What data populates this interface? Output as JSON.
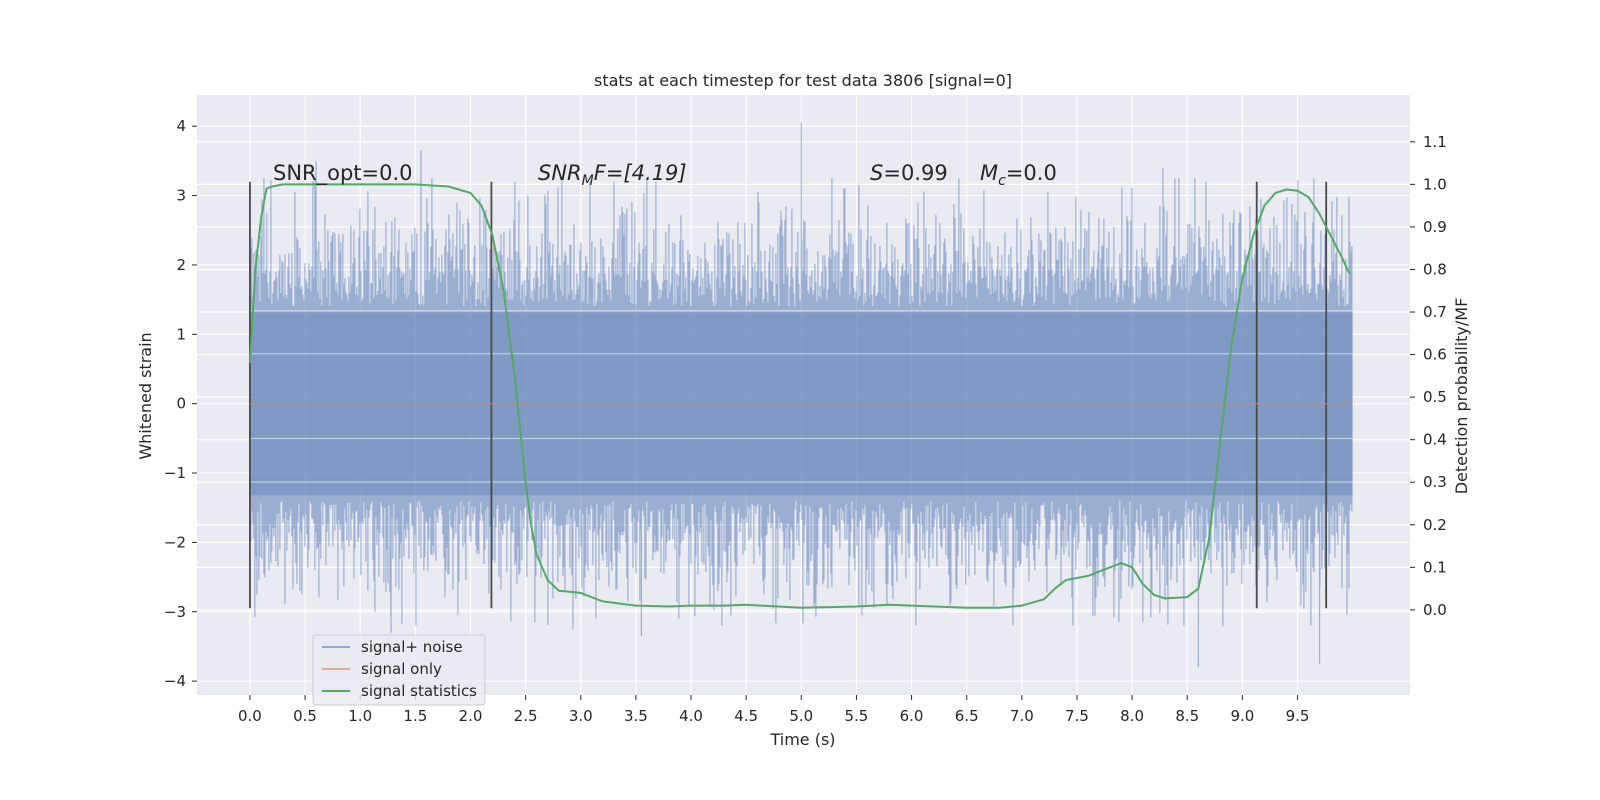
{
  "chart_data": {
    "type": "line",
    "title": "stats at each timestep for test data 3806 [signal=0]",
    "xlabel": "Time (s)",
    "ylabel": "Whitened strain",
    "y2label": "Detection probability/MF",
    "xlim": [
      -0.48,
      10.52
    ],
    "ylim": [
      -4.2,
      4.45
    ],
    "y2lim": [
      -0.2,
      1.21
    ],
    "xticks": [
      0.0,
      0.5,
      1.0,
      1.5,
      2.0,
      2.5,
      3.0,
      3.5,
      4.0,
      4.5,
      5.0,
      5.5,
      6.0,
      6.5,
      7.0,
      7.5,
      8.0,
      8.5,
      9.0,
      9.5
    ],
    "xtick_labels": [
      "0.0",
      "0.5",
      "1.0",
      "1.5",
      "2.0",
      "2.5",
      "3.0",
      "3.5",
      "4.0",
      "4.5",
      "5.0",
      "5.5",
      "6.0",
      "6.5",
      "7.0",
      "7.5",
      "8.0",
      "8.5",
      "9.0",
      "9.5"
    ],
    "yticks": [
      -4,
      -3,
      -2,
      -1,
      0,
      1,
      2,
      3,
      4
    ],
    "ytick_labels": [
      "−4",
      "−3",
      "−2",
      "−1",
      "0",
      "1",
      "2",
      "3",
      "4"
    ],
    "y2ticks": [
      0.0,
      0.1,
      0.2,
      0.3,
      0.4,
      0.5,
      0.6,
      0.7,
      0.8,
      0.9,
      1.0,
      1.1
    ],
    "y2tick_labels": [
      "0.0",
      "0.1",
      "0.2",
      "0.3",
      "0.4",
      "0.5",
      "0.6",
      "0.7",
      "0.8",
      "0.9",
      "1.0",
      "1.1"
    ],
    "grid": true,
    "legend_position": "bottom-left",
    "annotations": {
      "snr_opt": "SNR_opt=0.0",
      "snr_mf_main": "SNR",
      "snr_mf_sub": "M",
      "snr_mf_rest": "F=[4.19]",
      "s_symbol": "S",
      "s_value": "=0.99",
      "mc_symbol": "M",
      "mc_sub": "c",
      "mc_value": "=0.0"
    },
    "vertical_markers": [
      {
        "x": 0.0,
        "y_range": [
          -2.95,
          3.2
        ]
      },
      {
        "x": 2.19,
        "y_range": [
          -2.95,
          3.2
        ]
      },
      {
        "x": 9.13,
        "y_range": [
          -2.95,
          3.2
        ]
      },
      {
        "x": 9.76,
        "y_range": [
          -2.95,
          3.2
        ]
      }
    ],
    "series": [
      {
        "name": "signal+ noise",
        "color": "#4c72b0",
        "axis": "left",
        "x_range": [
          0.0,
          10.0
        ],
        "band_typical": [
          -1.75,
          1.75
        ],
        "band_extreme": [
          -3.8,
          4.05
        ],
        "peaks": [
          {
            "x": 0.6,
            "y": 3.5
          },
          {
            "x": 1.55,
            "y": 3.65
          },
          {
            "x": 1.28,
            "y": -3.3
          },
          {
            "x": 3.55,
            "y": -3.35
          },
          {
            "x": 5.0,
            "y": 4.05
          },
          {
            "x": 5.55,
            "y": -3.05
          },
          {
            "x": 8.6,
            "y": -3.8
          },
          {
            "x": 9.7,
            "y": -3.75
          },
          {
            "x": 8.28,
            "y": 3.4
          }
        ]
      },
      {
        "name": "signal only",
        "color": "#dd8452",
        "axis": "left",
        "x": [
          0.0,
          10.0
        ],
        "y": [
          0.0,
          0.0
        ]
      },
      {
        "name": "signal statistics",
        "color": "#55a868",
        "axis": "right",
        "x": [
          0.0,
          0.05,
          0.1,
          0.15,
          0.2,
          0.3,
          0.5,
          1.0,
          1.5,
          1.8,
          2.0,
          2.1,
          2.2,
          2.3,
          2.4,
          2.5,
          2.55,
          2.6,
          2.7,
          2.8,
          3.0,
          3.2,
          3.5,
          3.8,
          4.0,
          4.3,
          4.5,
          5.0,
          5.5,
          5.8,
          6.0,
          6.5,
          6.8,
          7.0,
          7.2,
          7.3,
          7.4,
          7.6,
          7.8,
          7.9,
          8.0,
          8.1,
          8.2,
          8.3,
          8.5,
          8.6,
          8.7,
          8.8,
          8.9,
          9.0,
          9.1,
          9.2,
          9.3,
          9.4,
          9.5,
          9.6,
          9.7,
          9.8,
          9.9,
          9.97
        ],
        "y": [
          0.58,
          0.8,
          0.92,
          0.99,
          0.995,
          1.0,
          1.0,
          1.0,
          1.0,
          0.995,
          0.98,
          0.95,
          0.88,
          0.75,
          0.55,
          0.3,
          0.2,
          0.13,
          0.07,
          0.045,
          0.04,
          0.02,
          0.01,
          0.008,
          0.01,
          0.01,
          0.012,
          0.005,
          0.008,
          0.012,
          0.01,
          0.005,
          0.005,
          0.01,
          0.025,
          0.05,
          0.07,
          0.08,
          0.1,
          0.11,
          0.1,
          0.06,
          0.035,
          0.027,
          0.03,
          0.05,
          0.17,
          0.4,
          0.62,
          0.78,
          0.88,
          0.95,
          0.98,
          0.988,
          0.985,
          0.97,
          0.93,
          0.88,
          0.83,
          0.79
        ]
      }
    ]
  }
}
